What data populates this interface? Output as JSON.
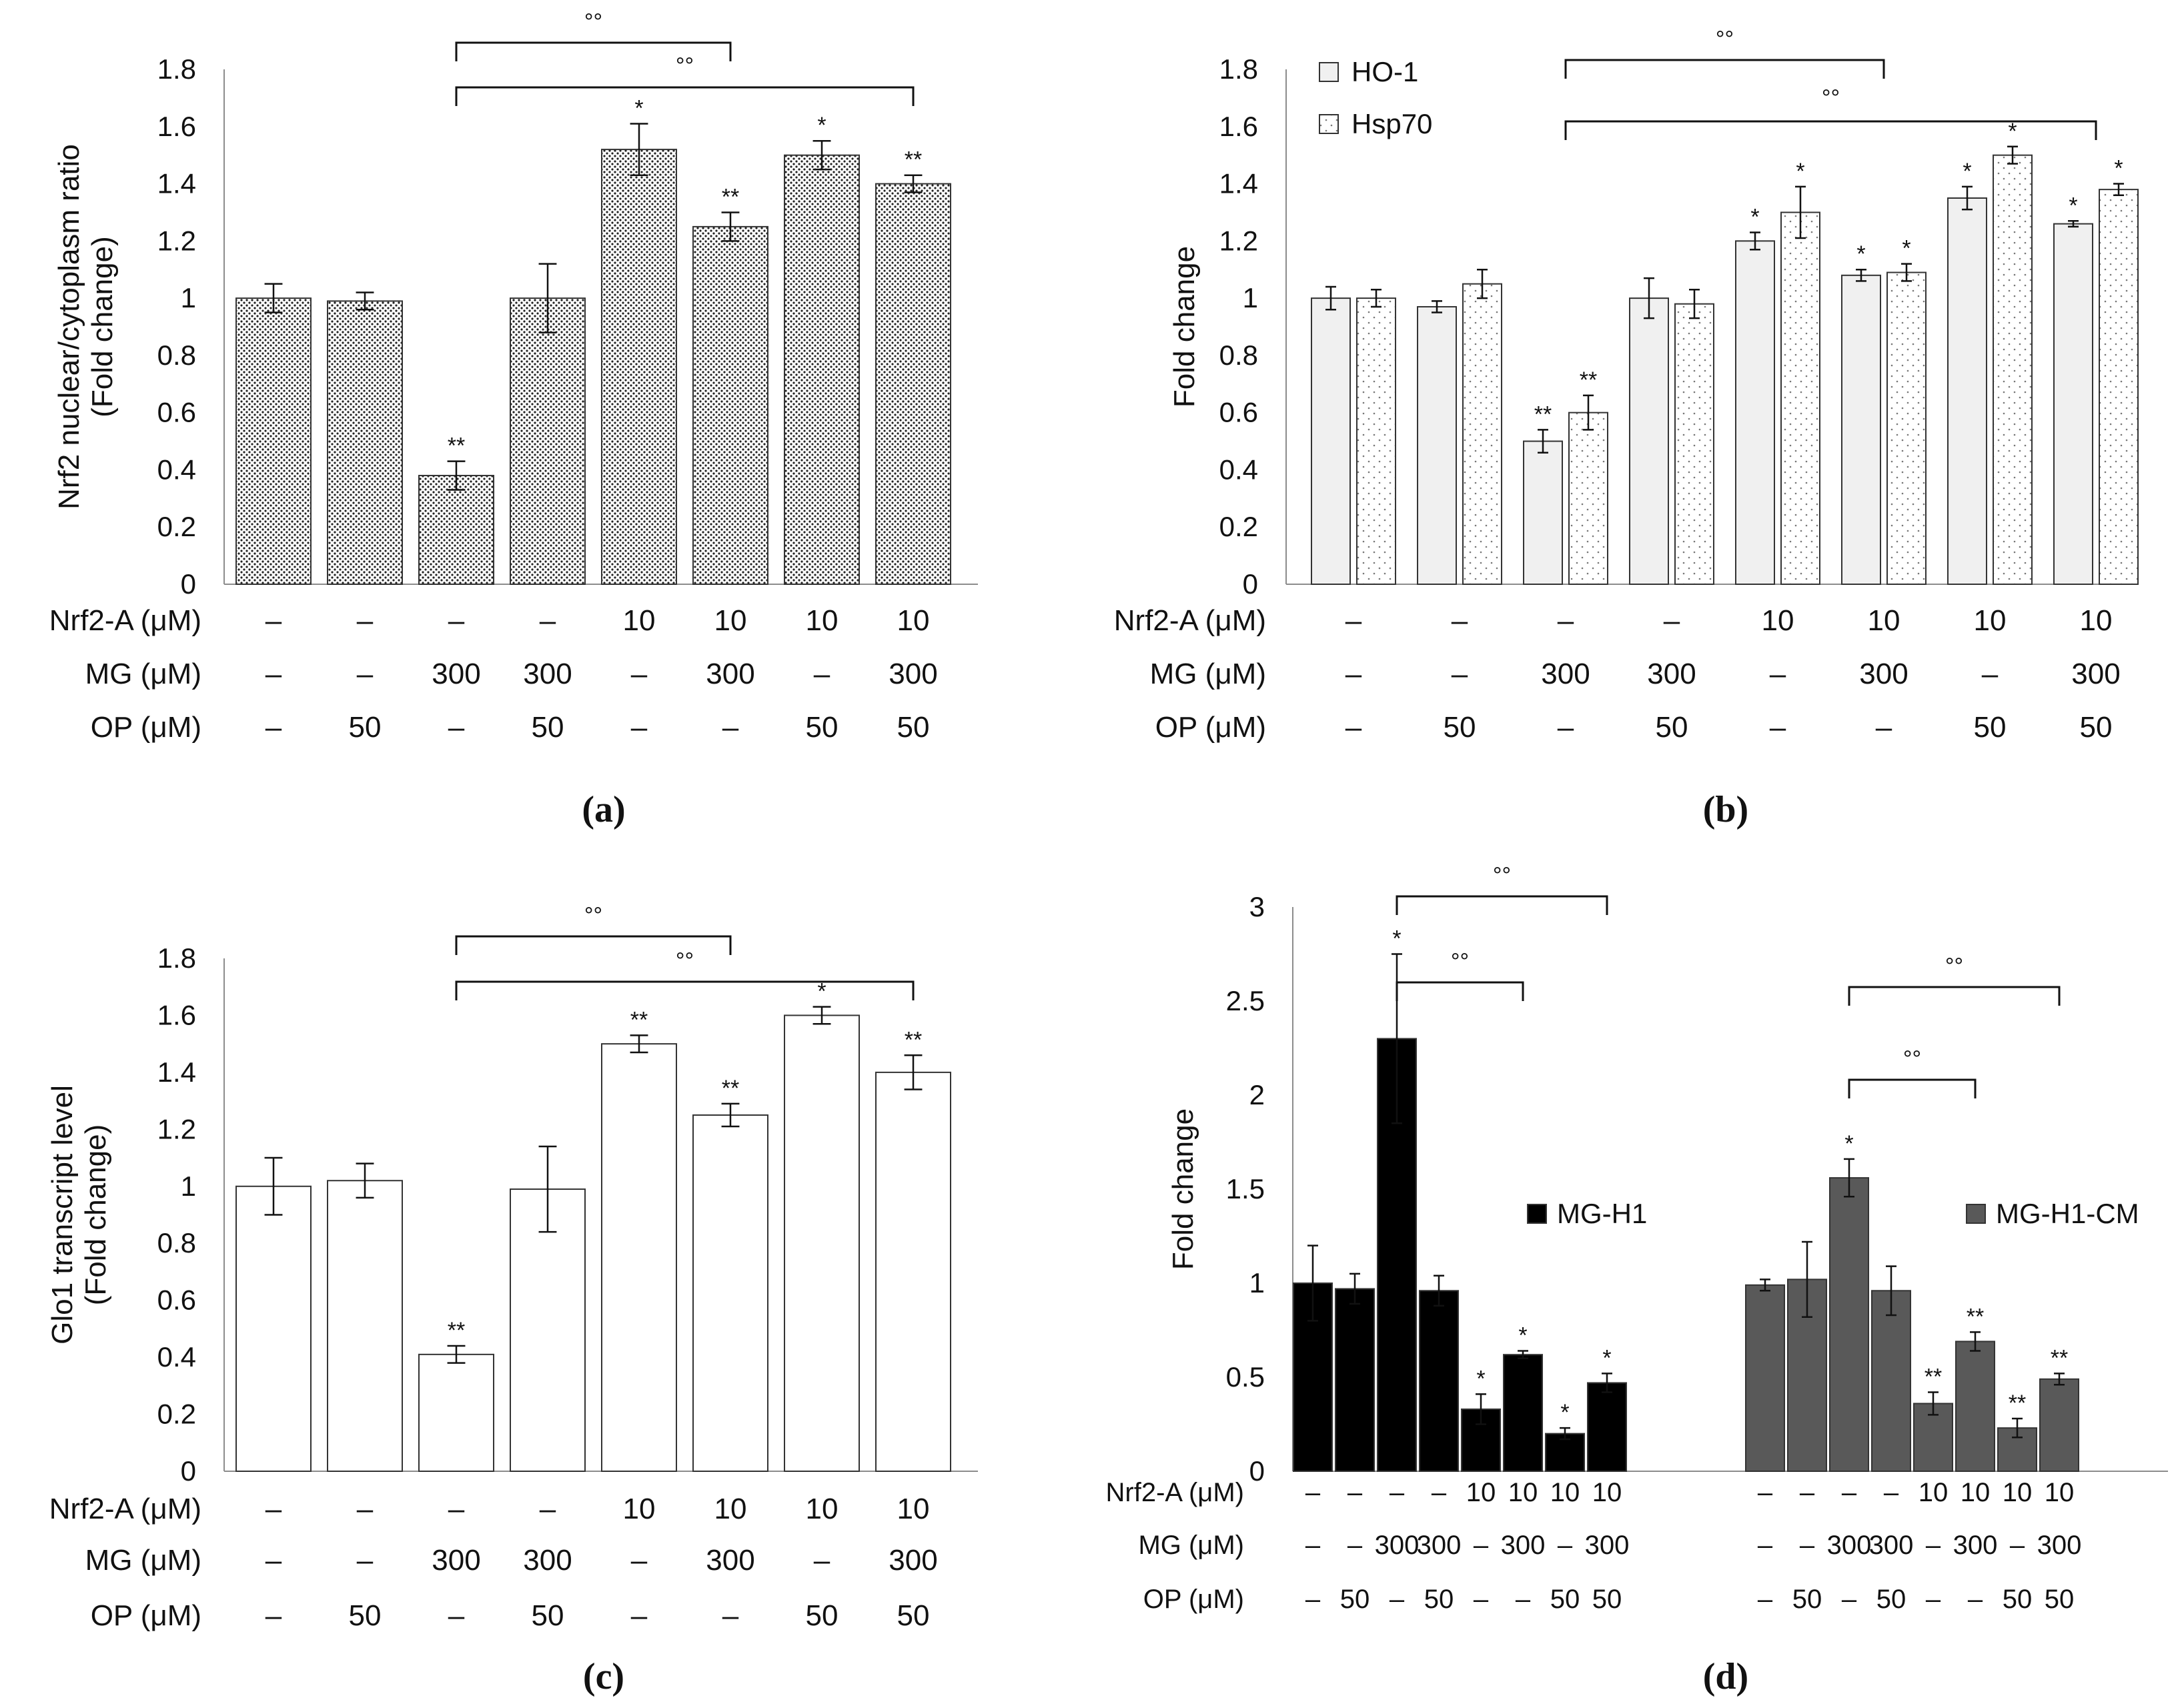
{
  "figure": {
    "colors": {
      "ink": "#111111",
      "bar_a": "#ffffff",
      "bar_c": "#ffffff",
      "bar_b_ho1": "#f0f0f0",
      "bar_b_hsp70": "#ffffff",
      "bar_d_mgh1": "#000000",
      "bar_d_mgh1cm": "#595959"
    }
  },
  "chart_data": [
    {
      "panel": "a",
      "panel_label": "(a)",
      "type": "bar",
      "ylabel_lines": [
        "Nrf2 nuclear/cytoplasm ratio",
        "(Fold change)"
      ],
      "ylim": [
        0,
        1.8
      ],
      "yticks": [
        0,
        0.2,
        0.4,
        0.6,
        0.8,
        1,
        1.2,
        1.4,
        1.6,
        1.8
      ],
      "ytick_labels": [
        "0",
        "0.2",
        "0.4",
        "0.6",
        "0.8",
        "1",
        "1.2",
        "1.4",
        "1.6",
        "1.8"
      ],
      "pattern": "dense-dots",
      "series": [
        {
          "name": "Nrf2 nuclear/cytoplasm ratio",
          "values": [
            1.0,
            0.99,
            0.38,
            1.0,
            1.52,
            1.25,
            1.5,
            1.4
          ],
          "errors": [
            0.05,
            0.03,
            0.05,
            0.12,
            0.09,
            0.05,
            0.05,
            0.03
          ],
          "significance": [
            "",
            "",
            "**",
            "",
            "*",
            "**",
            "*",
            "**"
          ]
        }
      ],
      "conditions": [
        {
          "label": "Nrf2-A (μM)",
          "values": [
            "–",
            "–",
            "–",
            "–",
            "10",
            "10",
            "10",
            "10"
          ]
        },
        {
          "label": "MG (μM)",
          "values": [
            "–",
            "–",
            "300",
            "300",
            "–",
            "300",
            "–",
            "300"
          ]
        },
        {
          "label": "OP (μM)",
          "values": [
            "–",
            "50",
            "–",
            "50",
            "–",
            "–",
            "50",
            "50"
          ]
        }
      ],
      "brackets": [
        {
          "from": 2,
          "to": 5,
          "label": "°°"
        },
        {
          "from": 2,
          "to": 7,
          "label": "°°"
        }
      ]
    },
    {
      "panel": "b",
      "panel_label": "(b)",
      "type": "bar",
      "ylabel_lines": [
        "Fold change"
      ],
      "ylim": [
        0,
        1.8
      ],
      "yticks": [
        0,
        0.2,
        0.4,
        0.6,
        0.8,
        1,
        1.2,
        1.4,
        1.6,
        1.8
      ],
      "ytick_labels": [
        "0",
        "0.2",
        "0.4",
        "0.6",
        "0.8",
        "1",
        "1.2",
        "1.4",
        "1.6",
        "1.8"
      ],
      "legend": [
        "HO-1",
        "Hsp70"
      ],
      "legend_position": "top-left",
      "series": [
        {
          "name": "HO-1",
          "values": [
            1.0,
            0.97,
            0.5,
            1.0,
            1.2,
            1.08,
            1.35,
            1.26
          ],
          "errors": [
            0.04,
            0.02,
            0.04,
            0.07,
            0.03,
            0.02,
            0.04,
            0.01
          ],
          "significance": [
            "",
            "",
            "**",
            "",
            "*",
            "*",
            "*",
            "*"
          ]
        },
        {
          "name": "Hsp70",
          "values": [
            1.0,
            1.05,
            0.6,
            0.98,
            1.3,
            1.09,
            1.5,
            1.38
          ],
          "errors": [
            0.03,
            0.05,
            0.06,
            0.05,
            0.09,
            0.03,
            0.03,
            0.02
          ],
          "significance": [
            "",
            "",
            "**",
            "",
            "*",
            "*",
            "*",
            "*"
          ]
        }
      ],
      "conditions": [
        {
          "label": "Nrf2-A (μM)",
          "values": [
            "–",
            "–",
            "–",
            "–",
            "10",
            "10",
            "10",
            "10"
          ]
        },
        {
          "label": "MG (μM)",
          "values": [
            "–",
            "–",
            "300",
            "300",
            "–",
            "300",
            "–",
            "300"
          ]
        },
        {
          "label": "OP (μM)",
          "values": [
            "–",
            "50",
            "–",
            "50",
            "–",
            "–",
            "50",
            "50"
          ]
        }
      ],
      "brackets": [
        {
          "from": 2,
          "to": 5,
          "label": "°°"
        },
        {
          "from": 2,
          "to": 7,
          "label": "°°"
        }
      ]
    },
    {
      "panel": "c",
      "panel_label": "(c)",
      "type": "bar",
      "ylabel_lines": [
        "Glo1 transcript level",
        "(Fold change)"
      ],
      "ylim": [
        0,
        1.8
      ],
      "yticks": [
        0,
        0.2,
        0.4,
        0.6,
        0.8,
        1,
        1.2,
        1.4,
        1.6,
        1.8
      ],
      "ytick_labels": [
        "0",
        "0.2",
        "0.4",
        "0.6",
        "0.8",
        "1",
        "1.2",
        "1.4",
        "1.6",
        "1.8"
      ],
      "series": [
        {
          "name": "Glo1 transcript level",
          "values": [
            1.0,
            1.02,
            0.41,
            0.99,
            1.5,
            1.25,
            1.6,
            1.4
          ],
          "errors": [
            0.1,
            0.06,
            0.03,
            0.15,
            0.03,
            0.04,
            0.03,
            0.06
          ],
          "significance": [
            "",
            "",
            "**",
            "",
            "**",
            "**",
            "*",
            "**"
          ]
        }
      ],
      "conditions": [
        {
          "label": "Nrf2-A (μM)",
          "values": [
            "–",
            "–",
            "–",
            "–",
            "10",
            "10",
            "10",
            "10"
          ]
        },
        {
          "label": "MG (μM)",
          "values": [
            "–",
            "–",
            "300",
            "300",
            "–",
            "300",
            "–",
            "300"
          ]
        },
        {
          "label": "OP (μM)",
          "values": [
            "–",
            "50",
            "–",
            "50",
            "–",
            "–",
            "50",
            "50"
          ]
        }
      ],
      "brackets": [
        {
          "from": 2,
          "to": 5,
          "label": "°°"
        },
        {
          "from": 2,
          "to": 7,
          "label": "°°"
        }
      ]
    },
    {
      "panel": "d",
      "panel_label": "(d)",
      "type": "bar",
      "ylabel_lines": [
        "Fold change"
      ],
      "ylim": [
        0,
        3
      ],
      "yticks": [
        0,
        0.5,
        1,
        1.5,
        2,
        2.5,
        3
      ],
      "ytick_labels": [
        "0",
        "0.5",
        "1",
        "1.5",
        "2",
        "2.5",
        "3"
      ],
      "series": [
        {
          "name": "MG-H1",
          "values": [
            1.0,
            0.97,
            2.3,
            0.96,
            0.33,
            0.62,
            0.2,
            0.47
          ],
          "errors": [
            0.2,
            0.08,
            0.45,
            0.08,
            0.08,
            0.02,
            0.03,
            0.05
          ],
          "significance": [
            "",
            "",
            "*",
            "",
            "*",
            "*",
            "*",
            "*"
          ]
        },
        {
          "name": "MG-H1-CM",
          "values": [
            0.99,
            1.02,
            1.56,
            0.96,
            0.36,
            0.69,
            0.23,
            0.49
          ],
          "errors": [
            0.03,
            0.2,
            0.1,
            0.13,
            0.06,
            0.05,
            0.05,
            0.03
          ],
          "significance": [
            "",
            "",
            "*",
            "",
            "**",
            "**",
            "**",
            "**"
          ]
        }
      ],
      "conditions": [
        {
          "label": "Nrf2-A (μM)",
          "values": [
            "–",
            "–",
            "–",
            "–",
            "10",
            "10",
            "10",
            "10"
          ]
        },
        {
          "label": "MG (μM)",
          "values": [
            "–",
            "–",
            "300",
            "300",
            "–",
            "300",
            "–",
            "300"
          ]
        },
        {
          "label": "OP (μM)",
          "values": [
            "–",
            "50",
            "–",
            "50",
            "–",
            "–",
            "50",
            "50"
          ]
        }
      ],
      "brackets": [
        {
          "series": 0,
          "from": 2,
          "to": 7,
          "label": "°°"
        },
        {
          "series": 0,
          "from": 2,
          "to": 5,
          "label": "°°"
        },
        {
          "series": 1,
          "from": 2,
          "to": 7,
          "label": "°°"
        },
        {
          "series": 1,
          "from": 2,
          "to": 5,
          "label": "°°"
        }
      ]
    }
  ]
}
